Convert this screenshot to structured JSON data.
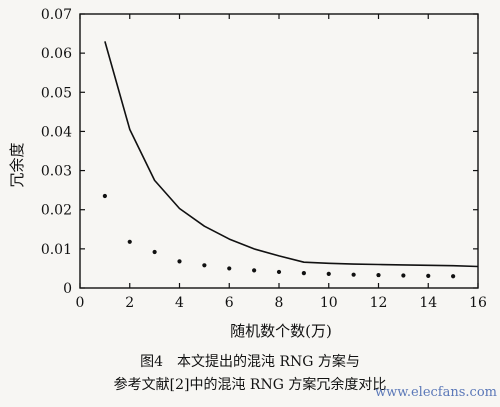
{
  "chart_data": {
    "type": "line",
    "xlabel": "随机数个数(万)",
    "ylabel": "冗余度",
    "xlim": [
      0,
      16
    ],
    "ylim": [
      0,
      0.07
    ],
    "xticks": [
      "0",
      "2",
      "4",
      "6",
      "8",
      "10",
      "12",
      "14",
      "16"
    ],
    "yticks": [
      "0",
      "0.01",
      "0.02",
      "0.03",
      "0.04",
      "0.05",
      "0.06",
      "0.07"
    ],
    "grid": false,
    "series": [
      {
        "style": "solid-line",
        "x": [
          1,
          2,
          3,
          4,
          5,
          6,
          7,
          8,
          9,
          10,
          11,
          12,
          13,
          14,
          15,
          16
        ],
        "y": [
          0.063,
          0.0405,
          0.0275,
          0.0203,
          0.0158,
          0.0125,
          0.01,
          0.0082,
          0.0066,
          0.0063,
          0.0061,
          0.006,
          0.0059,
          0.0058,
          0.0057,
          0.0055
        ]
      },
      {
        "style": "dots",
        "x": [
          1,
          2,
          3,
          4,
          5,
          6,
          7,
          8,
          9,
          10,
          11,
          12,
          13,
          14,
          15
        ],
        "y": [
          0.0235,
          0.0118,
          0.0092,
          0.0068,
          0.0058,
          0.005,
          0.0045,
          0.0041,
          0.0038,
          0.0036,
          0.0034,
          0.0033,
          0.0032,
          0.0031,
          0.003
        ]
      }
    ]
  },
  "caption": {
    "line1": "图4　本文提出的混沌 RNG 方案与",
    "line2": "参考文献[2]中的混沌 RNG 方案冗余度对比"
  },
  "watermark": "www.elecfans.com"
}
